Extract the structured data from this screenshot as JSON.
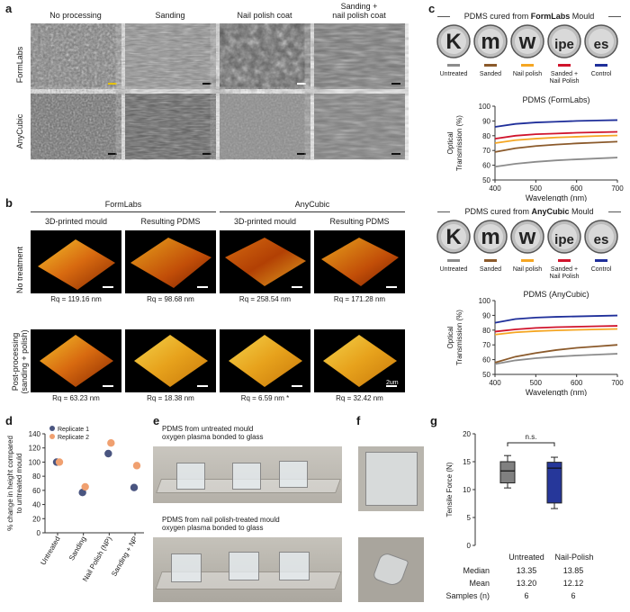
{
  "panel_labels": {
    "a": "a",
    "b": "b",
    "c": "c",
    "d": "d",
    "e": "e",
    "f": "f",
    "g": "g"
  },
  "panel_a": {
    "columns": [
      "No processing",
      "Sanding",
      "Nail polish coat",
      "Sanding +\nnail polish coat"
    ],
    "rows": [
      "FormLabs",
      "AnyCubic"
    ]
  },
  "panel_b": {
    "groups": [
      "FormLabs",
      "AnyCubic"
    ],
    "columns": [
      "3D-printed mould",
      "Resulting PDMS",
      "3D-printed mould",
      "Resulting PDMS"
    ],
    "rows": [
      "No treatment",
      "Post-processing\n(sanding + polish)"
    ],
    "rq_top": [
      "Rq =  119.16 nm",
      "Rq = 98.68 nm",
      "Rq = 258.54 nm",
      "Rq = 171.28 nm"
    ],
    "rq_bottom": [
      "Rq =  63.23 nm",
      "Rq = 18.38 nm",
      "Rq = 6.59 nm *",
      "Rq = 32.42 nm"
    ],
    "scale": "2um"
  },
  "panel_c": {
    "title_formlabs_pre": "PDMS cured from ",
    "title_formlabs_bold": "FormLabs",
    "title_formlabs_post": " Mould",
    "title_anycubic_pre": "PDMS cured from ",
    "title_anycubic_bold": "AnyCubic",
    "title_anycubic_post": " Mould",
    "letters": [
      "K",
      "m",
      "w",
      "ipe",
      "es"
    ],
    "legend": [
      "Untreated",
      "Sanded",
      "Nail polish",
      "Sanded +\nNail Polish",
      "Control"
    ],
    "legend_colors": [
      "#8c8c8c",
      "#8b5a2b",
      "#f5a623",
      "#d0142c",
      "#1f2f9a"
    ]
  },
  "chart_data": [
    {
      "type": "line",
      "title": "PDMS (FormLabs)",
      "xlabel": "Wavelength (nm)",
      "ylabel": "Optical\nTransmission (%)",
      "xlim": [
        400,
        700
      ],
      "ylim": [
        50,
        100
      ],
      "xticks": [
        400,
        500,
        600,
        700
      ],
      "yticks": [
        50,
        60,
        70,
        80,
        90,
        100
      ],
      "x": [
        400,
        450,
        500,
        550,
        600,
        650,
        700
      ],
      "series": [
        {
          "name": "Control",
          "color": "#1f2f9a",
          "values": [
            86,
            88,
            89,
            89.5,
            90,
            90.3,
            90.6
          ]
        },
        {
          "name": "Sanded + Nail Polish",
          "color": "#d0142c",
          "values": [
            78,
            80,
            81,
            81.5,
            82,
            82.3,
            82.6
          ]
        },
        {
          "name": "Nail polish",
          "color": "#f5a623",
          "values": [
            75,
            77,
            78,
            78.8,
            79.3,
            79.8,
            80.2
          ]
        },
        {
          "name": "Sanded",
          "color": "#8b5a2b",
          "values": [
            69,
            71.5,
            73,
            74,
            74.8,
            75.4,
            76
          ]
        },
        {
          "name": "Untreated",
          "color": "#8c8c8c",
          "values": [
            59,
            61,
            62.3,
            63.3,
            64,
            64.6,
            65.2
          ]
        }
      ]
    },
    {
      "type": "line",
      "title": "PDMS (AnyCubic)",
      "xlabel": "Wavelength (nm)",
      "ylabel": "Optical\nTransmission (%)",
      "xlim": [
        400,
        700
      ],
      "ylim": [
        50,
        100
      ],
      "xticks": [
        400,
        500,
        600,
        700
      ],
      "yticks": [
        50,
        60,
        70,
        80,
        90,
        100
      ],
      "x": [
        400,
        450,
        500,
        550,
        600,
        650,
        700
      ],
      "series": [
        {
          "name": "Control",
          "color": "#1f2f9a",
          "values": [
            85,
            87.5,
            88.5,
            89,
            89.3,
            89.6,
            89.9
          ]
        },
        {
          "name": "Sanded + Nail Polish",
          "color": "#d0142c",
          "values": [
            79,
            80.5,
            81.5,
            82,
            82.3,
            82.6,
            82.9
          ]
        },
        {
          "name": "Nail polish",
          "color": "#f5a623",
          "values": [
            77,
            78.5,
            79.3,
            79.8,
            80.2,
            80.5,
            80.8
          ]
        },
        {
          "name": "Sanded",
          "color": "#8b5a2b",
          "values": [
            58,
            62,
            64.5,
            66.5,
            68,
            69,
            70
          ]
        },
        {
          "name": "Untreated",
          "color": "#8c8c8c",
          "values": [
            57,
            59.5,
            61,
            62,
            62.8,
            63.4,
            64
          ]
        }
      ]
    },
    {
      "type": "scatter",
      "title": "",
      "ylabel": "% change in height compared\nto untreated mould",
      "ylim": [
        0,
        140
      ],
      "yticks": [
        0,
        20,
        40,
        60,
        80,
        100,
        120,
        140
      ],
      "categories": [
        "Untreated",
        "Sanding",
        "Nail Polish (NP)",
        "Sanding + NP"
      ],
      "series": [
        {
          "name": "Replicate 1",
          "color": "#4a5580",
          "values": [
            100,
            57,
            112,
            64
          ]
        },
        {
          "name": "Replicate 2",
          "color": "#f0a070",
          "values": [
            100,
            65,
            127,
            95
          ]
        }
      ]
    },
    {
      "type": "box",
      "title": "",
      "ylabel": "Tensile Force (N)",
      "ylim": [
        0,
        20
      ],
      "yticks": [
        0,
        5,
        10,
        15,
        20
      ],
      "categories": [
        "Untreated",
        "Nail-Polish"
      ],
      "boxes": [
        {
          "name": "Untreated",
          "color": "#808080",
          "min": 10.3,
          "q1": 11.2,
          "median": 13.35,
          "q3": 15.0,
          "max": 16.1
        },
        {
          "name": "Nail-Polish",
          "color": "#26379a",
          "min": 6.6,
          "q1": 7.6,
          "median": 13.85,
          "q3": 14.9,
          "max": 15.8
        }
      ],
      "annotation": "n.s."
    }
  ],
  "panel_e": {
    "caption_top": "PDMS from untreated mould\noxygen plasma bonded to glass",
    "caption_bottom": "PDMS from nail polish-treated mould\noxygen plasma bonded to glass"
  },
  "panel_g_table": {
    "headers": [
      "Untreated",
      "Nail-Polish"
    ],
    "rows": [
      {
        "label": "Median",
        "values": [
          "13.35",
          "13.85"
        ]
      },
      {
        "label": "Mean",
        "values": [
          "13.20",
          "12.12"
        ]
      },
      {
        "label": "Samples (n)",
        "values": [
          "6",
          "6"
        ]
      }
    ]
  }
}
